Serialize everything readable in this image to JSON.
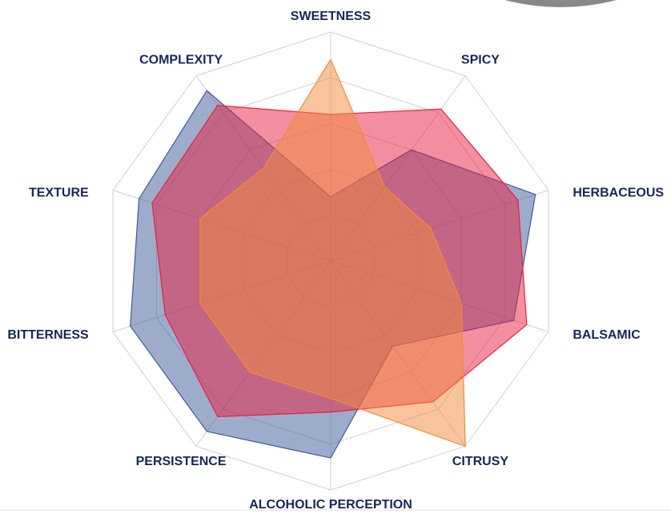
{
  "chart_data": {
    "type": "radar",
    "categories": [
      "SWEETNESS",
      "SPICY",
      "HERBACEOUS",
      "BALSAMIC",
      "CITRUSY",
      "ALCOHOLIC PERCEPTION",
      "PERSISTENCE",
      "BITTERNESS",
      "TEXTURE",
      "COMPLEXITY"
    ],
    "series": [
      {
        "color": "#3d5a9a",
        "values": [
          1.4,
          3.0,
          4.7,
          4.2,
          2.3,
          4.3,
          4.6,
          4.6,
          4.4,
          4.6
        ]
      },
      {
        "color": "#e8203f",
        "values": [
          3.2,
          4.1,
          4.3,
          4.5,
          3.8,
          3.3,
          4.2,
          3.8,
          4.1,
          4.2
        ]
      },
      {
        "color": "#f2893e",
        "values": [
          4.4,
          2.0,
          2.3,
          3.0,
          5.0,
          3.0,
          3.0,
          3.0,
          3.0,
          2.5
        ]
      }
    ],
    "rlim": [
      0,
      5
    ],
    "rticks": [
      1,
      2,
      3,
      4,
      5
    ],
    "grid": true
  }
}
